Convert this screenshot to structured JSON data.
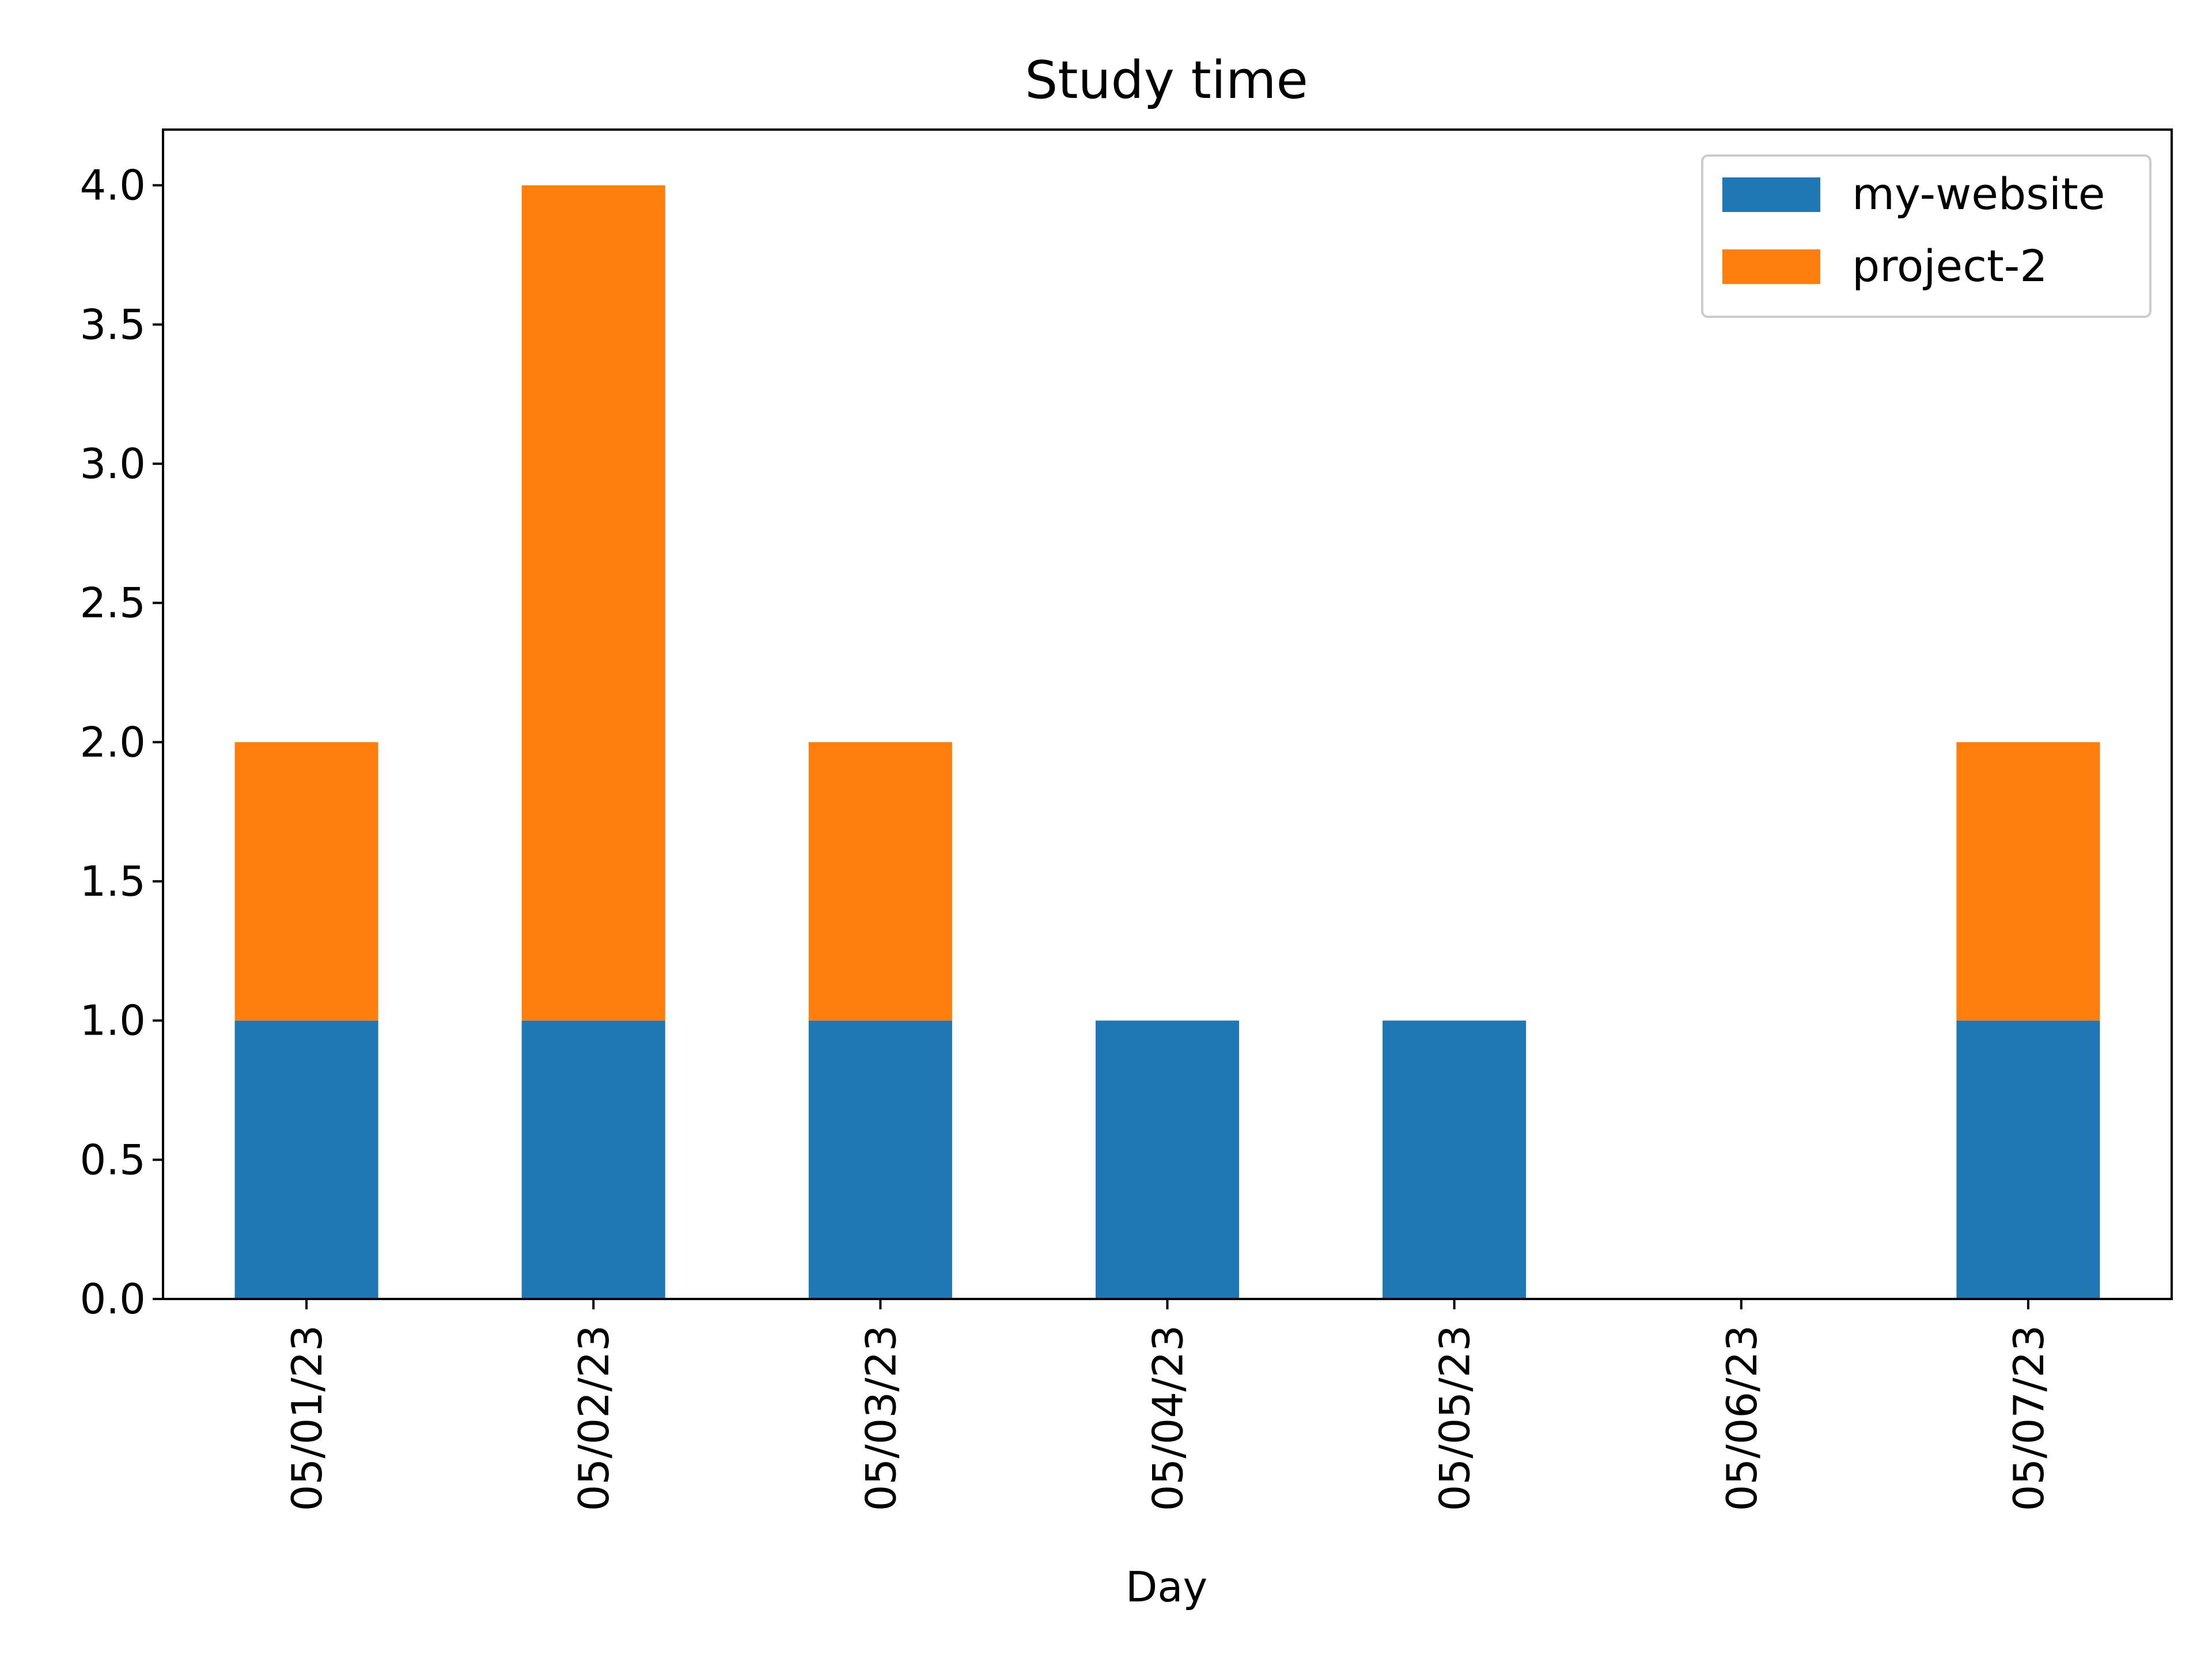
{
  "chart_data": {
    "type": "bar",
    "stacked": true,
    "title": "Study time",
    "xlabel": "Day",
    "ylabel": "",
    "ylim": [
      0,
      4.2
    ],
    "yticks": [
      "0.0",
      "0.5",
      "1.0",
      "1.5",
      "2.0",
      "2.5",
      "3.0",
      "3.5",
      "4.0"
    ],
    "categories": [
      "05/01/23",
      "05/02/23",
      "05/03/23",
      "05/04/23",
      "05/05/23",
      "05/06/23",
      "05/07/23"
    ],
    "series": [
      {
        "name": "my-website",
        "color": "#1f77b4",
        "values": [
          1,
          1,
          1,
          1,
          1,
          0,
          1
        ]
      },
      {
        "name": "project-2",
        "color": "#ff7f0e",
        "values": [
          1,
          3,
          1,
          0,
          0,
          0,
          1
        ]
      }
    ],
    "grid": false,
    "legend": "top-right"
  }
}
